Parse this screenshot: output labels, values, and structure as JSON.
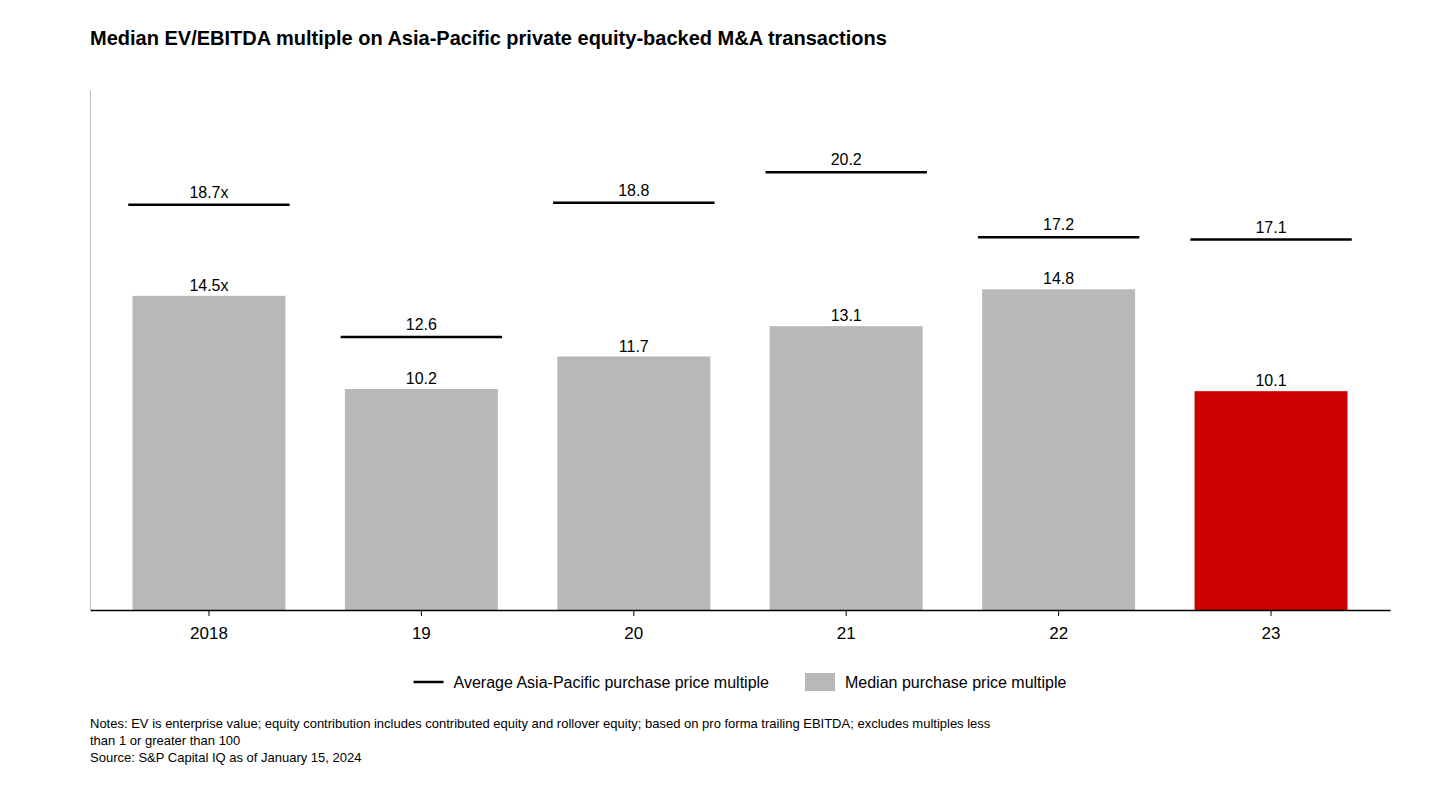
{
  "chart_data": {
    "type": "bar",
    "title": "Median EV/EBITDA multiple on Asia-Pacific private equity-backed M&A transactions",
    "categories": [
      "2018",
      "19",
      "20",
      "21",
      "22",
      "23"
    ],
    "series": [
      {
        "name": "Average Asia-Pacific purchase price multiple",
        "type": "scatter",
        "marker": "hline",
        "color": "#000000",
        "values": [
          18.7,
          12.6,
          18.8,
          20.2,
          17.2,
          17.1
        ],
        "value_labels": [
          "18.7x",
          "12.6",
          "18.8",
          "20.2",
          "17.2",
          "17.1"
        ]
      },
      {
        "name": "Median purchase price multiple",
        "type": "bar",
        "color": "#b8b8b8",
        "colors": [
          "#b8b8b8",
          "#b8b8b8",
          "#b8b8b8",
          "#b8b8b8",
          "#b8b8b8",
          "#cc0000"
        ],
        "values": [
          14.5,
          10.2,
          11.7,
          13.1,
          14.8,
          10.1
        ],
        "value_labels": [
          "14.5x",
          "10.2",
          "11.7",
          "13.1",
          "14.8",
          "10.1"
        ]
      }
    ],
    "annotations": [
      "Notes: EV is enterprise value; equity contribution includes contributed equity and rollover equity; based on pro forma trailing EBITDA; excludes multiples less\nthan 1 or greater than 100\nSource: S&P Capital IQ as of January 15, 2024"
    ],
    "ylim": [
      0,
      24
    ],
    "yticks": [],
    "grid": false,
    "legend": "bottom",
    "data_labels": true,
    "tick_labels": "x"
  }
}
